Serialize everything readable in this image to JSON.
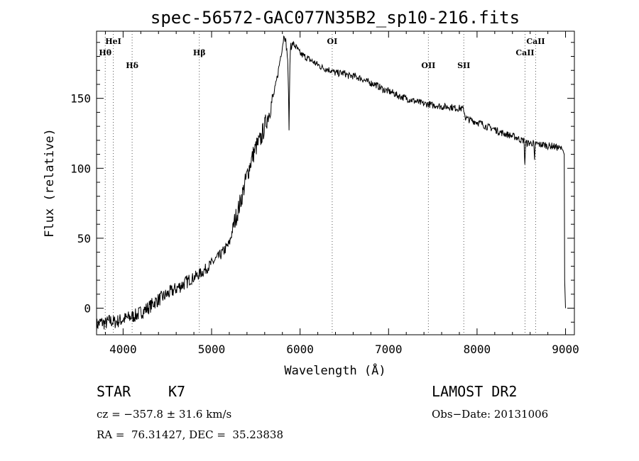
{
  "chart_data": {
    "type": "line",
    "title": "spec-56572-GAC077N35B2_sp10-216.fits",
    "xlabel": "Wavelength (Å)",
    "ylabel": "Flux (relative)",
    "xlim": [
      3700,
      9100
    ],
    "ylim": [
      -19,
      198
    ],
    "xticks": [
      4000,
      5000,
      6000,
      7000,
      8000,
      9000
    ],
    "yticks": [
      0,
      50,
      100,
      150
    ],
    "grid": false,
    "series": [
      {
        "x": [
          3700,
          3750,
          3800,
          3850,
          3900,
          3950,
          4000,
          4050,
          4100,
          4150,
          4200,
          4250,
          4300,
          4350,
          4400,
          4450,
          4500,
          4550,
          4600,
          4650,
          4700,
          4750,
          4800,
          4850,
          4900,
          4950,
          5000,
          5050,
          5100,
          5150,
          5200,
          5250,
          5300,
          5350,
          5400,
          5450,
          5500,
          5550,
          5600,
          5650,
          5700,
          5720,
          5750,
          5780,
          5800,
          5820,
          5840,
          5860,
          5875,
          5880,
          5885,
          5895,
          5900,
          5920,
          5950,
          6000,
          6050,
          6100,
          6150,
          6200,
          6250,
          6300,
          6350,
          6400,
          6450,
          6500,
          6550,
          6600,
          6650,
          6700,
          6750,
          6800,
          6850,
          6900,
          6950,
          7000,
          7050,
          7100,
          7150,
          7200,
          7250,
          7300,
          7350,
          7400,
          7450,
          7500,
          7550,
          7600,
          7650,
          7700,
          7750,
          7800,
          7850,
          7870,
          7900,
          7950,
          8000,
          8050,
          8100,
          8150,
          8200,
          8250,
          8300,
          8350,
          8400,
          8450,
          8500,
          8530,
          8540,
          8550,
          8560,
          8600,
          8640,
          8650,
          8660,
          8700,
          8750,
          8800,
          8850,
          8900,
          8950,
          8970,
          8985,
          8990,
          9000
        ],
        "y": [
          -12,
          -10,
          -11,
          -9,
          -10,
          -9,
          -8,
          -7,
          -6,
          -5,
          -3,
          -1,
          1,
          4,
          6,
          8,
          10,
          12,
          14,
          16,
          18,
          20,
          22,
          24,
          26,
          29,
          32,
          35,
          38,
          42,
          46,
          60,
          70,
          82,
          95,
          106,
          115,
          120,
          130,
          140,
          152,
          158,
          168,
          180,
          187,
          196,
          190,
          178,
          134,
          150,
          175,
          190,
          187,
          189,
          187,
          182,
          180,
          178,
          176,
          174,
          172,
          171,
          170,
          168,
          168,
          168,
          166,
          166,
          165,
          164,
          162,
          161,
          160,
          158,
          156,
          155,
          154,
          152,
          151,
          150,
          149,
          148,
          147,
          146,
          146,
          145,
          145,
          144,
          144,
          144,
          143,
          143,
          142,
          136,
          135,
          134,
          133,
          132,
          130,
          129,
          128,
          126,
          125,
          124,
          123,
          122,
          120,
          120,
          103,
          118,
          118,
          118,
          118,
          104,
          118,
          117,
          117,
          116,
          116,
          115,
          114,
          113,
          110,
          20,
          0
        ]
      }
    ],
    "line_markers": [
      {
        "label": "Hθ",
        "x": 3798,
        "row": 1
      },
      {
        "label": "HeI",
        "x": 3889,
        "row": 0
      },
      {
        "label": "Hδ",
        "x": 4102,
        "row": 2
      },
      {
        "label": "Hβ",
        "x": 4861,
        "row": 1
      },
      {
        "label": "OI",
        "x": 6363,
        "row": 0
      },
      {
        "label": "OII",
        "x": 7450,
        "row": 2
      },
      {
        "label": "SII",
        "x": 7850,
        "row": 2
      },
      {
        "label": "CaII",
        "x": 8542,
        "row": 1
      },
      {
        "label": "CaII",
        "x": 8662,
        "row": 0
      }
    ]
  },
  "info": {
    "object_class": "STAR",
    "subclass": "K7",
    "survey": "LAMOST DR2",
    "redshift_text": "cz = −357.8 ± 31.6 km/s",
    "obs_date": "Obs−Date: 20131006",
    "coords": "RA =  76.31427, DEC =  35.23838"
  }
}
